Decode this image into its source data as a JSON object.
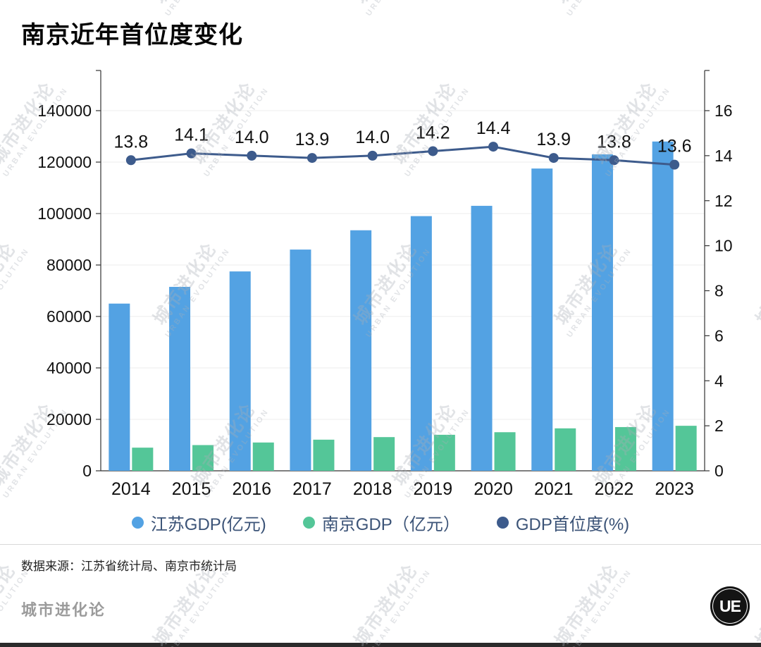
{
  "page": {
    "source_note": "数据来源：江苏省统计局、南京市统计局",
    "footer_brand": "城市进化论",
    "logo_text": "UE",
    "watermark": {
      "line1": "城市进化论",
      "line2": "URBAN EVOLUTION"
    }
  },
  "chart_data": {
    "type": "bar",
    "title": "南京近年首位度变化",
    "categories": [
      "2014",
      "2015",
      "2016",
      "2017",
      "2018",
      "2019",
      "2020",
      "2021",
      "2022",
      "2023"
    ],
    "series": [
      {
        "name": "江苏GDP(亿元)",
        "type": "bar",
        "axis": "left",
        "color": "#53a2e3",
        "values": [
          65000,
          71500,
          77500,
          86000,
          93500,
          99000,
          103000,
          117500,
          123000,
          128000
        ]
      },
      {
        "name": "南京GDP（亿元）",
        "type": "bar",
        "axis": "left",
        "color": "#54c698",
        "values": [
          9000,
          10000,
          11000,
          12100,
          13100,
          14000,
          15000,
          16500,
          17000,
          17500
        ]
      },
      {
        "name": "GDP首位度(%)",
        "type": "line",
        "axis": "right",
        "color": "#3d5b8c",
        "values": [
          13.8,
          14.1,
          14.0,
          13.9,
          14.0,
          14.2,
          14.4,
          13.9,
          13.8,
          13.6
        ],
        "labels": [
          "13.8",
          "14.1",
          "14.0",
          "13.9",
          "14.0",
          "14.2",
          "14.4",
          "13.9",
          "13.8",
          "13.6"
        ]
      }
    ],
    "left_axis": {
      "min": 0,
      "max": 140000,
      "step": 20000,
      "ticks": [
        "0",
        "20000",
        "40000",
        "60000",
        "80000",
        "100000",
        "120000",
        "140000"
      ]
    },
    "right_axis": {
      "min": 0,
      "max": 16,
      "step": 2,
      "ticks": [
        "0",
        "2",
        "4",
        "6",
        "8",
        "10",
        "12",
        "14",
        "16"
      ]
    },
    "grid": true,
    "legend_position": "bottom"
  }
}
